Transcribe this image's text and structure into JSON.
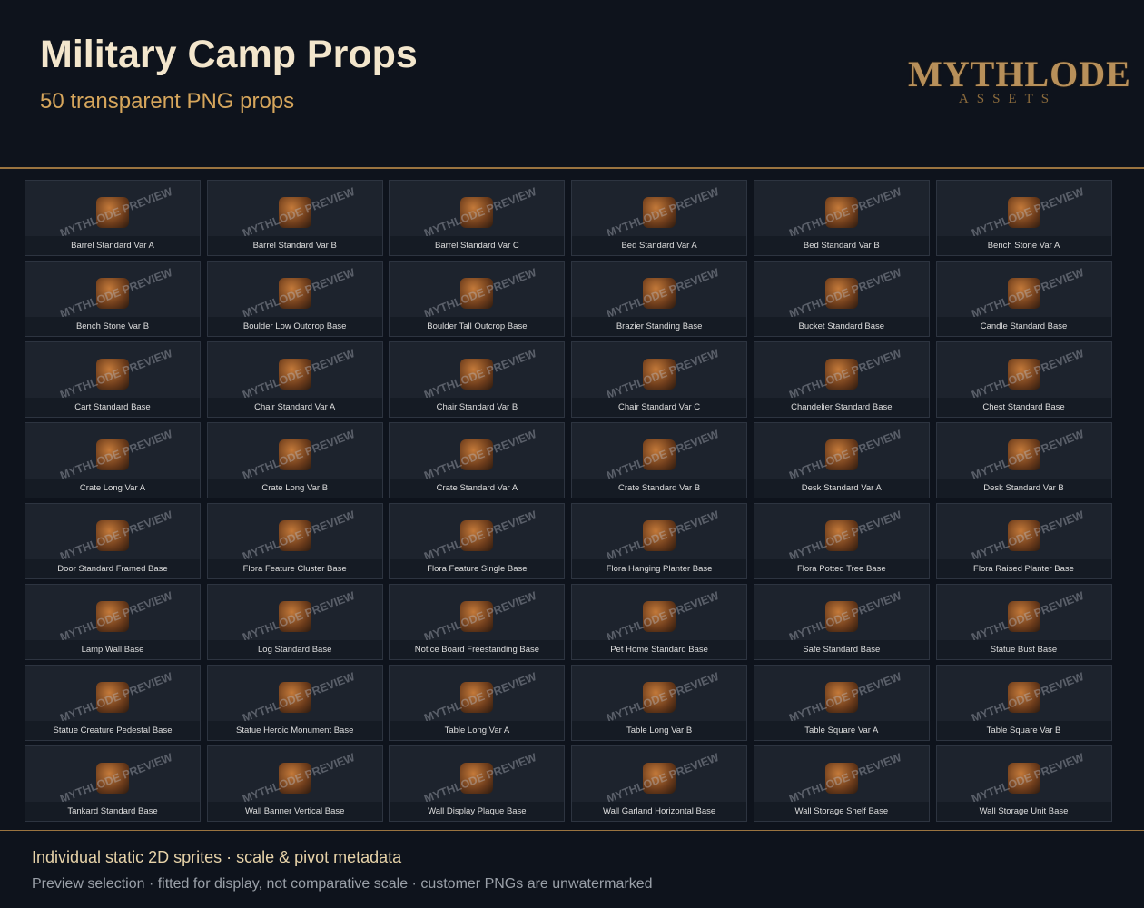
{
  "header": {
    "title": "Military Camp Props",
    "subtitle": "50 transparent PNG props"
  },
  "logo": {
    "name": "MYTHLODE",
    "tagline": "ASSETS"
  },
  "watermark": "MYTHLODE PREVIEW",
  "items": [
    "Barrel Standard Var A",
    "Barrel Standard Var B",
    "Barrel Standard Var C",
    "Bed Standard Var A",
    "Bed Standard Var B",
    "Bench Stone Var A",
    "Bench Stone Var B",
    "Boulder Low Outcrop Base",
    "Boulder Tall Outcrop Base",
    "Brazier Standing Base",
    "Bucket Standard Base",
    "Candle Standard Base",
    "Cart Standard Base",
    "Chair Standard Var A",
    "Chair Standard Var B",
    "Chair Standard Var C",
    "Chandelier Standard Base",
    "Chest Standard Base",
    "Crate Long Var A",
    "Crate Long Var B",
    "Crate Standard Var A",
    "Crate Standard Var B",
    "Desk Standard Var A",
    "Desk Standard Var B",
    "Door Standard Framed Base",
    "Flora Feature Cluster Base",
    "Flora Feature Single Base",
    "Flora Hanging Planter Base",
    "Flora Potted Tree Base",
    "Flora Raised Planter Base",
    "Lamp Wall Base",
    "Log Standard Base",
    "Notice Board Freestanding Base",
    "Pet Home Standard Base",
    "Safe Standard Base",
    "Statue Bust Base",
    "Statue Creature Pedestal Base",
    "Statue Heroic Monument Base",
    "Table Long Var A",
    "Table Long Var B",
    "Table Square Var A",
    "Table Square Var B",
    "Tankard Standard Base",
    "Wall Banner Vertical Base",
    "Wall Display Plaque Base",
    "Wall Garland Horizontal Base",
    "Wall Storage Shelf Base",
    "Wall Storage Unit Base"
  ],
  "footer": {
    "line1": "Individual static 2D sprites · scale & pivot metadata",
    "line2": "Preview selection · fitted for display, not comparative scale · customer PNGs are unwatermarked"
  }
}
